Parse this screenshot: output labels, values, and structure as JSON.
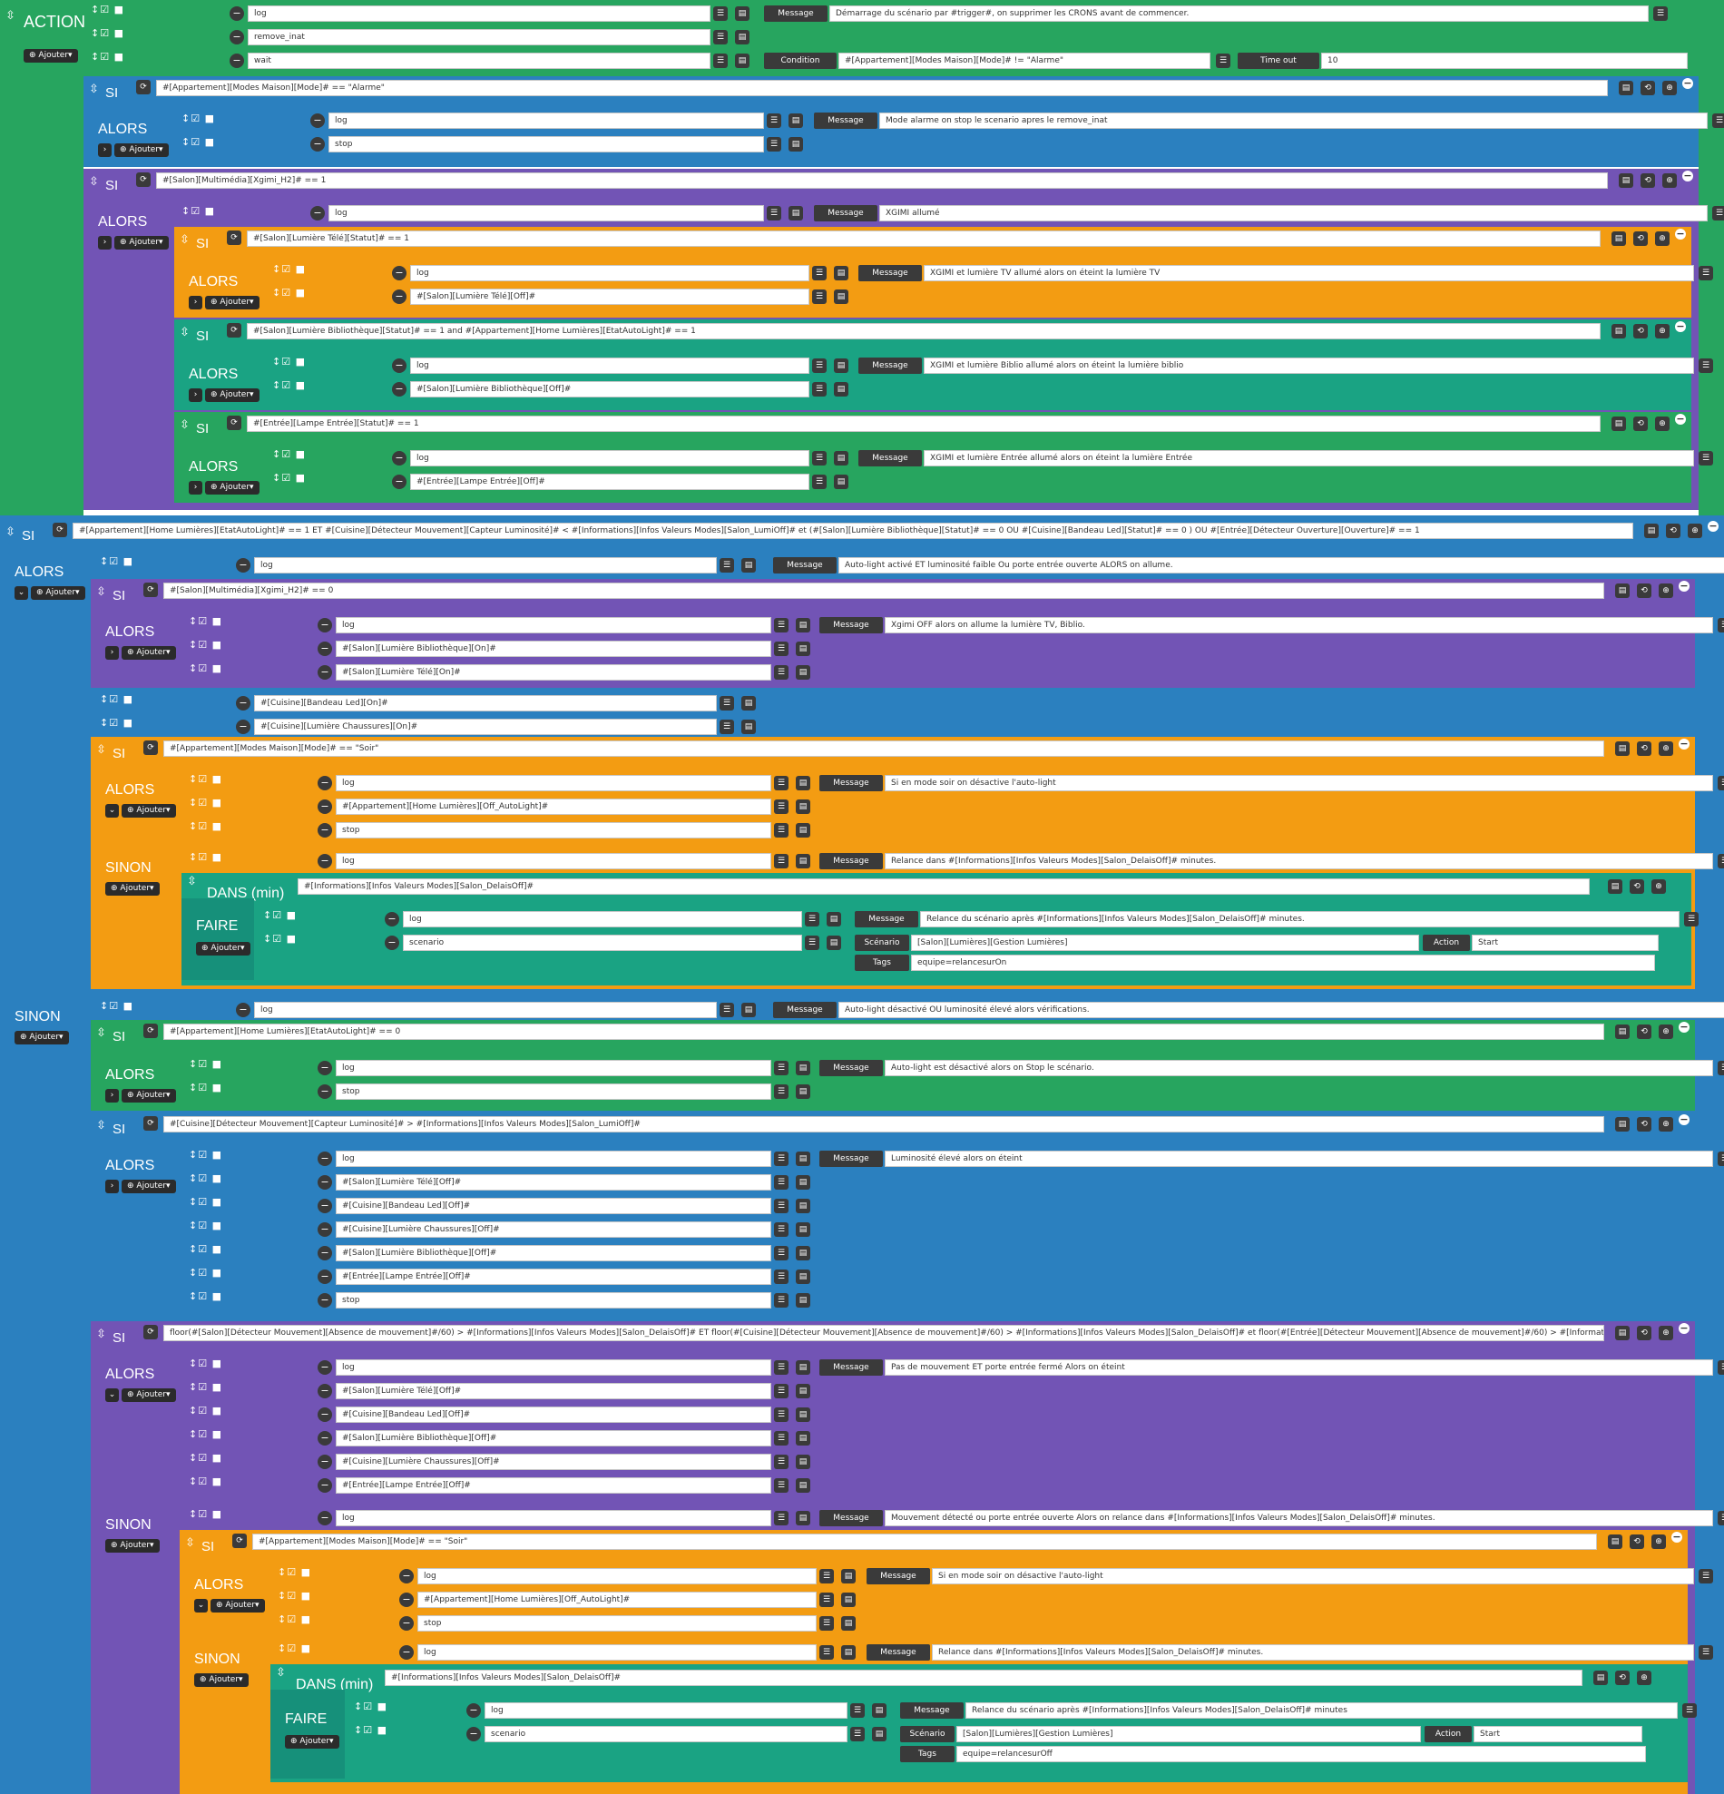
{
  "colors": {
    "green": "#27a55f",
    "blue": "#2b80bf",
    "purple": "#7254b5",
    "orange": "#f39c12",
    "teal": "#1aa383"
  },
  "labels": {
    "action": "ACTION",
    "si": "SI",
    "alors": "ALORS",
    "sinon": "SINON",
    "dans": "DANS (min)",
    "faire": "FAIRE",
    "ajouter": "Ajouter",
    "message": "Message",
    "condition": "Condition",
    "timeout": "Time out",
    "scenario": "Scénario",
    "action_lbl": "Action",
    "tags": "Tags"
  },
  "top": {
    "cmd1": "log",
    "cmd2": "remove_inat",
    "cmd3": "wait",
    "msg1": "Démarrage du scénario par #trigger#, on supprimer les CRONS avant de commencer.",
    "condition": "#[Appartement][Modes Maison][Mode]# != \"Alarme\"",
    "timeout": "10"
  },
  "si1": {
    "cond": "#[Appartement][Modes Maison][Mode]# == \"Alarme\"",
    "c1": "log",
    "c2": "stop",
    "msg": "Mode alarme on stop le scenario apres le remove_inat"
  },
  "si2": {
    "cond": "#[Salon][Multimédia][Xgimi_H2]# == 1",
    "c1": "log",
    "msg": "XGIMI allumé",
    "s1": {
      "cond": "#[Salon][Lumière Télé][Statut]# == 1",
      "c1": "log",
      "c2": "#[Salon][Lumière Télé][Off]#",
      "msg": "XGIMI et lumière TV allumé alors on éteint la lumière TV"
    },
    "s2": {
      "cond": "#[Salon][Lumière Bibliothèque][Statut]# == 1  and #[Appartement][Home Lumières][EtatAutoLight]# == 1",
      "c1": "log",
      "c2": "#[Salon][Lumière Bibliothèque][Off]#",
      "msg": "XGIMI et lumière Biblio allumé alors on éteint la lumière biblio"
    },
    "s3": {
      "cond": "#[Entrée][Lampe Entrée][Statut]# == 1",
      "c1": "log",
      "c2": "#[Entrée][Lampe Entrée][Off]#",
      "msg": "XGIMI et lumière Entrée allumé alors on éteint la lumière Entrée"
    }
  },
  "si3": {
    "cond": "#[Appartement][Home Lumières][EtatAutoLight]# == 1  ET #[Cuisine][Détecteur Mouvement][Capteur Luminosité]# < #[Informations][Infos Valeurs Modes][Salon_LumiOff]# et (#[Salon][Lumière Bibliothèque][Statut]# == 0 OU #[Cuisine][Bandeau Led][Statut]# == 0  ) OU #[Entrée][Détecteur Ouverture][Ouverture]# == 1",
    "c1": "log",
    "msg": "Auto-light activé ET luminosité faible Ou porte entrée ouverte ALORS on allume.",
    "s1": {
      "cond": "#[Salon][Multimédia][Xgimi_H2]# == 0",
      "c1": "log",
      "c2": "#[Salon][Lumière Bibliothèque][On]#",
      "c3": "#[Salon][Lumière Télé][On]#",
      "msg": "Xgimi OFF alors on allume la lumière TV, Biblio."
    },
    "c2": "#[Cuisine][Bandeau Led][On]#",
    "c3": "#[Cuisine][Lumière Chaussures][On]#",
    "s2": {
      "cond": "#[Appartement][Modes Maison][Mode]# == \"Soir\"",
      "c1": "log",
      "c2": "#[Appartement][Home Lumières][Off_AutoLight]#",
      "c3": "stop",
      "msg": "Si en mode soir on désactive l'auto-light",
      "sn_c1": "log",
      "sn_msg": "Relance dans #[Informations][Infos Valeurs Modes][Salon_DelaisOff]# minutes.",
      "dans_cond": "#[Informations][Infos Valeurs Modes][Salon_DelaisOff]#",
      "f_c1": "log",
      "f_c2": "scenario",
      "f_msg": "Relance du scénario après #[Informations][Infos Valeurs Modes][Salon_DelaisOff]# minutes.",
      "f_scen": "[Salon][Lumières][Gestion Lumières]",
      "f_action": "Start",
      "f_tags": "equipe=relancesurOn"
    },
    "sinon": {
      "c1": "log",
      "msg": "Auto-light désactivé OU luminosité élevé alors vérifications.",
      "s1": {
        "cond": "#[Appartement][Home Lumières][EtatAutoLight]# == 0",
        "c1": "log",
        "c2": "stop",
        "msg": "Auto-light est désactivé alors on Stop le scénario."
      },
      "s2": {
        "cond": "#[Cuisine][Détecteur Mouvement][Capteur Luminosité]# > #[Informations][Infos Valeurs Modes][Salon_LumiOff]#",
        "msg": "Luminosité élevé alors on éteint",
        "cmds": [
          "log",
          "#[Salon][Lumière Télé][Off]#",
          "#[Cuisine][Bandeau Led][Off]#",
          "#[Cuisine][Lumière Chaussures][Off]#",
          "#[Salon][Lumière Bibliothèque][Off]#",
          "#[Entrée][Lampe Entrée][Off]#",
          "stop"
        ]
      },
      "s3": {
        "cond": "floor(#[Salon][Détecteur Mouvement][Absence de mouvement]#/60) > #[Informations][Infos Valeurs Modes][Salon_DelaisOff]#  ET floor(#[Cuisine][Détecteur Mouvement][Absence de mouvement]#/60) > #[Informations][Infos Valeurs Modes][Salon_DelaisOff]# et floor(#[Entrée][Détecteur Mouvement][Absence de mouvement]#/60) > #[Informations][Infos Valeurs",
        "msg": "Pas de mouvement ET porte entrée fermé Alors on éteint",
        "cmds": [
          "log",
          "#[Salon][Lumière Télé][Off]#",
          "#[Cuisine][Bandeau Led][Off]#",
          "#[Salon][Lumière Bibliothèque][Off]#",
          "#[Cuisine][Lumière Chaussures][Off]#",
          "#[Entrée][Lampe Entrée][Off]#"
        ],
        "sn_c1": "log",
        "sn_msg": "Mouvement détecté ou porte entrée ouverte Alors on relance dans #[Informations][Infos Valeurs Modes][Salon_DelaisOff]# minutes.",
        "inner": {
          "cond": "#[Appartement][Modes Maison][Mode]# == \"Soir\"",
          "c1": "log",
          "c2": "#[Appartement][Home Lumières][Off_AutoLight]#",
          "c3": "stop",
          "msg": "Si en mode soir on désactive l'auto-light",
          "sn_c1": "log",
          "sn_msg": "Relance dans #[Informations][Infos Valeurs Modes][Salon_DelaisOff]# minutes.",
          "dans_cond": "#[Informations][Infos Valeurs Modes][Salon_DelaisOff]#",
          "f_c1": "log",
          "f_c2": "scenario",
          "f_msg": "Relance du scénario après #[Informations][Infos Valeurs Modes][Salon_DelaisOff]# minutes",
          "f_scen": "[Salon][Lumières][Gestion Lumières]",
          "f_action": "Start",
          "f_tags": "equipe=relancesurOff"
        }
      }
    }
  }
}
